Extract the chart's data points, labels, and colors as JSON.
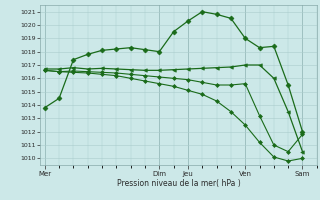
{
  "background_color": "#cce8e8",
  "grid_color": "#aacccc",
  "line_color": "#1a6b1a",
  "xlabel": "Pression niveau de la mer( hPa )",
  "ylim": [
    1009.5,
    1021.5
  ],
  "yticks": [
    1010,
    1011,
    1012,
    1013,
    1014,
    1015,
    1016,
    1017,
    1018,
    1019,
    1020,
    1021
  ],
  "day_labels": [
    "Mer",
    "Dim",
    "Jeu",
    "Ven",
    "Sam"
  ],
  "day_positions": [
    0,
    48,
    60,
    84,
    108
  ],
  "xlim": [
    -2,
    114
  ],
  "lines": [
    {
      "x": [
        0,
        6,
        12,
        18,
        24,
        30,
        36,
        42,
        48,
        54,
        60,
        66,
        72,
        78,
        84,
        90,
        96,
        102,
        108
      ],
      "y": [
        1013.8,
        1014.5,
        1017.4,
        1017.8,
        1018.1,
        1018.2,
        1018.3,
        1018.15,
        1018.0,
        1019.5,
        1020.3,
        1021.0,
        1020.8,
        1020.5,
        1019.0,
        1018.3,
        1018.4,
        1015.5,
        1012.0
      ],
      "marker": "D",
      "markersize": 2.5,
      "lw": 0.9
    },
    {
      "x": [
        0,
        6,
        12,
        18,
        24,
        30,
        36,
        42,
        48,
        54,
        60,
        66,
        72,
        78,
        84,
        90,
        96,
        102,
        108
      ],
      "y": [
        1016.7,
        1016.7,
        1016.8,
        1016.7,
        1016.75,
        1016.7,
        1016.65,
        1016.6,
        1016.6,
        1016.65,
        1016.7,
        1016.75,
        1016.8,
        1016.85,
        1017.0,
        1017.0,
        1016.0,
        1013.5,
        1010.5
      ],
      "marker": "<",
      "markersize": 2.5,
      "lw": 0.9
    },
    {
      "x": [
        0,
        6,
        12,
        18,
        24,
        30,
        36,
        42,
        48,
        54,
        60,
        66,
        72,
        78,
        84,
        90,
        96,
        102,
        108
      ],
      "y": [
        1016.6,
        1016.5,
        1016.55,
        1016.5,
        1016.45,
        1016.4,
        1016.3,
        1016.2,
        1016.1,
        1016.0,
        1015.9,
        1015.7,
        1015.5,
        1015.5,
        1015.6,
        1013.2,
        1011.0,
        1010.5,
        1011.8
      ],
      "marker": "D",
      "markersize": 2.0,
      "lw": 0.8
    },
    {
      "x": [
        0,
        6,
        12,
        18,
        24,
        30,
        36,
        42,
        48,
        54,
        60,
        66,
        72,
        78,
        84,
        90,
        96,
        102,
        108
      ],
      "y": [
        1016.6,
        1016.5,
        1016.45,
        1016.4,
        1016.3,
        1016.2,
        1016.0,
        1015.8,
        1015.6,
        1015.4,
        1015.1,
        1014.8,
        1014.3,
        1013.5,
        1012.5,
        1011.2,
        1010.1,
        1009.8,
        1010.0
      ],
      "marker": "D",
      "markersize": 2.0,
      "lw": 0.8
    }
  ]
}
